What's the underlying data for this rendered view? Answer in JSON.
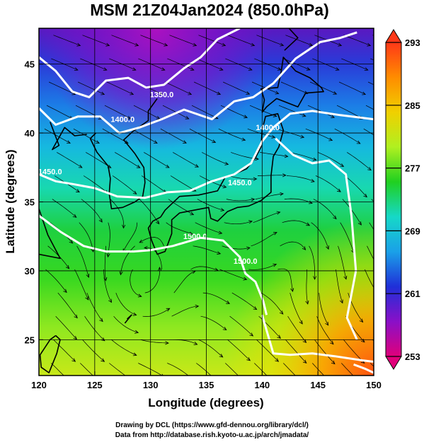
{
  "chart_data": {
    "type": "heatmap",
    "title": "MSM 21Z04Jan2024 (850.0hPa)",
    "xlabel": "Longitude (degrees)",
    "ylabel": "Latitude  (degrees)",
    "xlim": [
      120,
      150
    ],
    "ylim": [
      22.4,
      47.6
    ],
    "x_ticks": [
      120,
      125,
      130,
      135,
      140,
      145,
      150
    ],
    "y_ticks": [
      25,
      30,
      35,
      40,
      45
    ],
    "colorbar": {
      "min": 253,
      "max": 293,
      "ticks": [
        293,
        285,
        277,
        269,
        261,
        253
      ],
      "colors": [
        "#e0007a",
        "#8a10c8",
        "#1f2fd8",
        "#1aa0e8",
        "#16d8c8",
        "#20d020",
        "#b0f020",
        "#f0d000",
        "#ff8c00",
        "#ff3818"
      ]
    },
    "overlays": [
      "streamlines (wind)",
      "geopotential height contours (white)",
      "coastlines"
    ],
    "contour_labels": [
      "1350.0",
      "1400.0",
      "1400.0",
      "1450.0",
      "1450.0",
      "1500.0",
      "1500.0"
    ],
    "grid": true
  },
  "credits": {
    "line1": "Drawing by DCL (https://www.gfd-dennou.org/library/dcl/)",
    "line2": "Data from http://database.rish.kyoto-u.ac.jp/arch/jmadata/"
  }
}
